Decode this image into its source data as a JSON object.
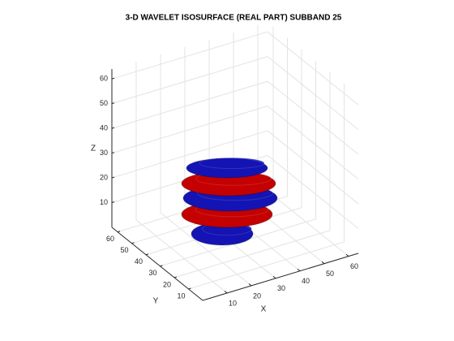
{
  "chart_data": {
    "type": "isosurface",
    "title": "3-D WAVELET ISOSURFACE (REAL PART) SUBBAND 25",
    "xlabel": "X",
    "ylabel": "Y",
    "zlabel": "Z",
    "xlim": [
      0,
      64
    ],
    "ylim": [
      0,
      64
    ],
    "zlim": [
      0,
      64
    ],
    "xticks": [
      10,
      20,
      30,
      40,
      50,
      60
    ],
    "yticks": [
      10,
      20,
      30,
      40,
      50,
      60
    ],
    "zticks": [
      10,
      20,
      30,
      40,
      50,
      60
    ],
    "grid": true,
    "colors": [
      "#1414b4",
      "#c40000"
    ]
  }
}
